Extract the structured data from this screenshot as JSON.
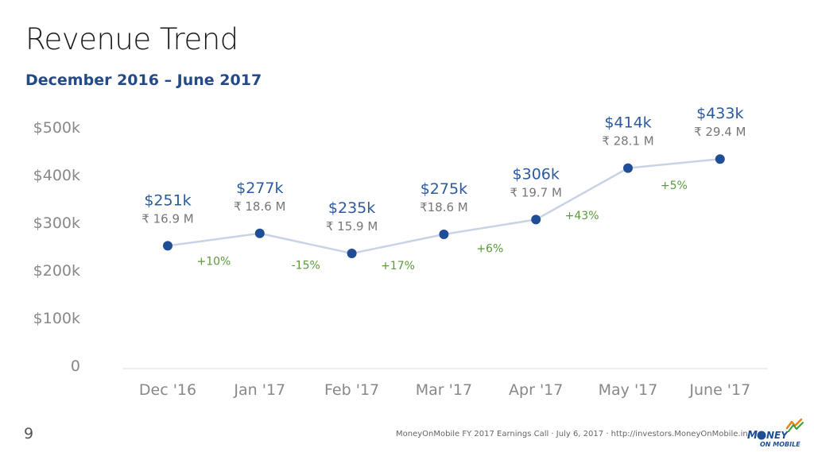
{
  "slide": {
    "title": "Revenue Trend",
    "subtitle": "December 2016 – June 2017",
    "page_number": "9",
    "footer": "MoneyOnMobile FY 2017 Earnings Call · July 6, 2017 · http://investors.MoneyOnMobile.in",
    "logo_text": "MONEY ON MOBILE"
  },
  "colors": {
    "line": "#c9d3e6",
    "point": "#1f4e96",
    "usd_label": "#2a5aa0",
    "inr_label": "#777777",
    "growth": "#5a9a3a",
    "axis_text": "#888888"
  },
  "chart_data": {
    "type": "line",
    "categories": [
      "Dec '16",
      "Jan '17",
      "Feb '17",
      "Mar '17",
      "Apr '17",
      "May '17",
      "June '17"
    ],
    "values": [
      251,
      277,
      235,
      275,
      306,
      414,
      433
    ],
    "value_labels": [
      "$251k",
      "$277k",
      "$235k",
      "$275k",
      "$306k",
      "$414k",
      "$433k"
    ],
    "inr_labels": [
      "₹ 16.9 M",
      "₹ 18.6 M",
      "₹ 15.9 M",
      "₹18.6 M",
      "₹ 19.7 M",
      "₹ 28.1 M",
      "₹ 29.4 M"
    ],
    "growth_labels": [
      "+10%",
      "-15%",
      "+17%",
      "+6%",
      "+43%",
      "+5%"
    ],
    "yticks": [
      0,
      100,
      200,
      300,
      400,
      500
    ],
    "ytick_labels": [
      "0",
      "$100k",
      "$200k",
      "$300k",
      "$400k",
      "$500k"
    ],
    "ylim": [
      0,
      500
    ],
    "grid": false
  }
}
